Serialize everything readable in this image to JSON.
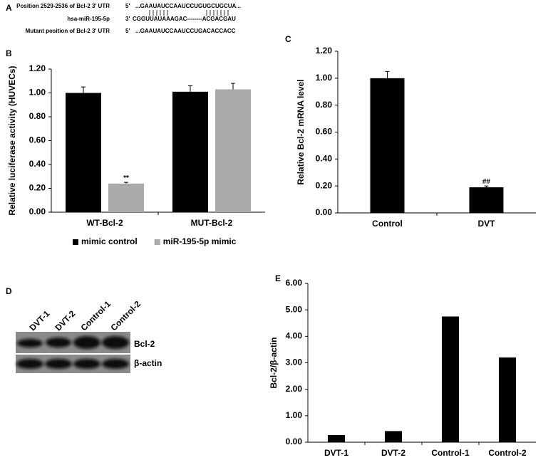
{
  "panel_a": {
    "label": "A",
    "rows": [
      {
        "name": "Position 2529-2536 of Bcl-2 3' UTR",
        "end": "5'",
        "sequence": "...GAAUAUCCAAUCCUGUGCUGCUA..."
      },
      {
        "name": "hsa-miR-195-5p",
        "end": "3'",
        "sequence": "CGGUUAUAAAGAC--------ACGACGAU"
      },
      {
        "name": "Mutant position of Bcl-2 3' UTR",
        "end": "5'",
        "sequence": "...GAAUAUCCAAUCCUGACACCACC"
      }
    ]
  },
  "panel_d": {
    "label": "D",
    "lanes": [
      "DVT-1",
      "DVT-2",
      "Control-1",
      "Control-2"
    ],
    "bands": [
      "Bcl-2",
      "β-actin"
    ]
  },
  "chart_data": [
    {
      "type": "bar",
      "panel": "B",
      "ylabel": "Relative luciferase activity (HUVECs)",
      "categories": [
        "WT-Bcl-2",
        "MUT-Bcl-2"
      ],
      "series": [
        {
          "name": "mimic control",
          "color": "#000000",
          "values": [
            1.0,
            1.01
          ],
          "errors": [
            0.05,
            0.05
          ]
        },
        {
          "name": "miR-195-5p mimic",
          "color": "#aaaaaa",
          "values": [
            0.24,
            1.03
          ],
          "errors": [
            0.01,
            0.05
          ],
          "significance": [
            null,
            null
          ]
        }
      ],
      "annotations": [
        {
          "series": 1,
          "category": 0,
          "text": "**"
        }
      ],
      "ylim": [
        0,
        1.2
      ],
      "yticks": [
        {
          "value": 0,
          "label": "0.00"
        },
        {
          "value": 0.2,
          "label": "0.20"
        },
        {
          "value": 0.4,
          "label": "0.40"
        },
        {
          "value": 0.6,
          "label": "0.60"
        },
        {
          "value": 0.8,
          "label": "0.80"
        },
        {
          "value": 1.0,
          "label": "1.00"
        },
        {
          "value": 1.2,
          "label": "1.20"
        }
      ],
      "legend": "bottom"
    },
    {
      "type": "bar",
      "panel": "C",
      "ylabel": "Relative Bcl-2 mRNA level",
      "categories": [
        "Control",
        "DVT"
      ],
      "series": [
        {
          "color": "#000000",
          "values": [
            1.0,
            0.19
          ],
          "errors": [
            0.05,
            0.01
          ]
        }
      ],
      "annotations": [
        {
          "series": 0,
          "category": 1,
          "text": "##"
        }
      ],
      "ylim": [
        0,
        1.2
      ],
      "yticks": [
        {
          "value": 0,
          "label": "0.00"
        },
        {
          "value": 0.2,
          "label": "0.20"
        },
        {
          "value": 0.4,
          "label": "0.40"
        },
        {
          "value": 0.6,
          "label": "0.60"
        },
        {
          "value": 0.8,
          "label": "0.80"
        },
        {
          "value": 1.0,
          "label": "1.00"
        },
        {
          "value": 1.2,
          "label": "1.20"
        }
      ]
    },
    {
      "type": "bar",
      "panel": "E",
      "ylabel": "Bcl-2/β-actin",
      "categories": [
        "DVT-1",
        "DVT-2",
        "Control-1",
        "Control-2"
      ],
      "series": [
        {
          "color": "#000000",
          "values": [
            0.27,
            0.42,
            4.75,
            3.2
          ]
        }
      ],
      "ylim": [
        0,
        6
      ],
      "yticks": [
        {
          "value": 0,
          "label": "0.00"
        },
        {
          "value": 1,
          "label": "1.00"
        },
        {
          "value": 2,
          "label": "2.00"
        },
        {
          "value": 3,
          "label": "3.00"
        },
        {
          "value": 4,
          "label": "4.00"
        },
        {
          "value": 5,
          "label": "5.00"
        },
        {
          "value": 6,
          "label": "6.00"
        }
      ]
    }
  ]
}
